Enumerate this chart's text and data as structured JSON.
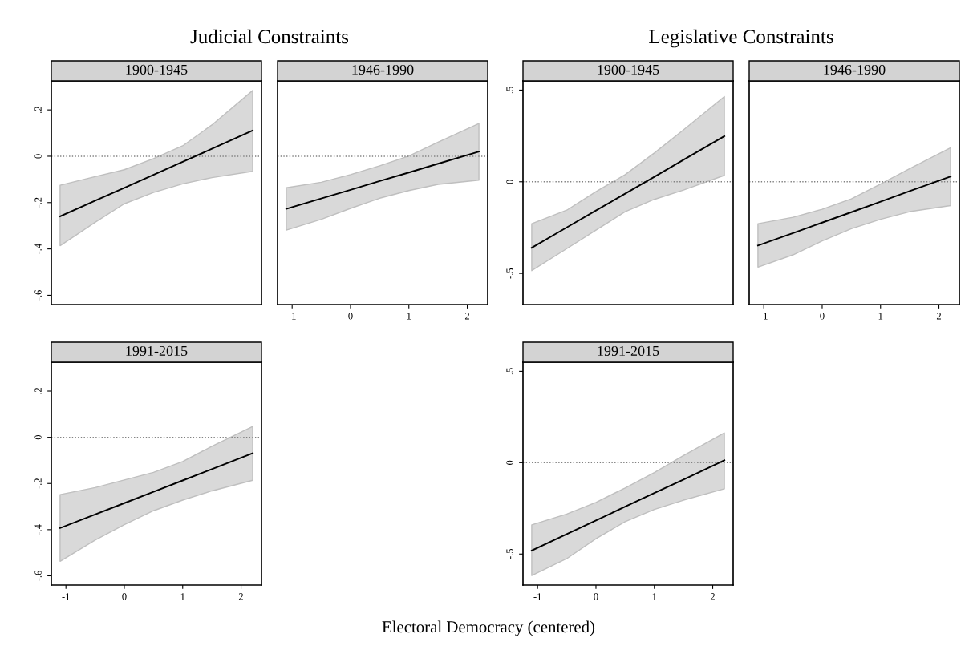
{
  "chart_data": [
    {
      "type": "line",
      "title": "1900-1945",
      "annotations": [
        "Judicial Constraints"
      ],
      "x": [
        -1.1,
        -0.5,
        0,
        0.5,
        1,
        1.5,
        2.2
      ],
      "series": [
        {
          "color": "#000000",
          "values": [
            -0.259,
            -0.192,
            -0.136,
            -0.08,
            -0.024,
            0.032,
            0.111
          ],
          "lower": [
            -0.386,
            -0.285,
            -0.205,
            -0.156,
            -0.119,
            -0.092,
            -0.065
          ],
          "upper": [
            -0.125,
            -0.088,
            -0.058,
            -0.01,
            0.045,
            0.135,
            0.284
          ]
        }
      ],
      "xlim": [
        -1.25,
        2.35
      ],
      "ylim": [
        -0.64,
        0.325
      ],
      "yticks": [
        {
          "value": -0.6,
          "label": "-.6"
        },
        {
          "value": -0.4,
          "label": "-.4"
        },
        {
          "value": -0.2,
          "label": "-.2"
        },
        0,
        {
          "value": 0.2,
          "label": ".2"
        }
      ],
      "ref_lines": [
        {
          "axis": "y",
          "value": 0,
          "color": "#808080",
          "line_style": "dotted"
        }
      ],
      "tick_labels": "y",
      "grid": false,
      "legend": false,
      "marker": "none",
      "line_style": "solid"
    },
    {
      "type": "line",
      "title": "1946-1990",
      "x": [
        -1.1,
        -0.5,
        0,
        0.5,
        1,
        1.5,
        2.2
      ],
      "series": [
        {
          "color": "#000000",
          "values": [
            -0.227,
            -0.182,
            -0.145,
            -0.107,
            -0.07,
            -0.032,
            0.02
          ],
          "lower": [
            -0.319,
            -0.272,
            -0.225,
            -0.181,
            -0.148,
            -0.121,
            -0.103
          ],
          "upper": [
            -0.136,
            -0.112,
            -0.079,
            -0.041,
            0.001,
            0.061,
            0.141
          ]
        }
      ],
      "xlim": [
        -1.25,
        2.35
      ],
      "ylim": [
        -0.64,
        0.325
      ],
      "xticks": [
        -1,
        0,
        1,
        2
      ],
      "ref_lines": [
        {
          "axis": "y",
          "value": 0,
          "color": "#808080",
          "line_style": "dotted"
        }
      ],
      "tick_labels": "x",
      "grid": false,
      "legend": false,
      "marker": "none",
      "line_style": "solid"
    },
    {
      "type": "line",
      "title": "1900-1945",
      "annotations": [
        "Legislative Constraints"
      ],
      "x": [
        -1.1,
        -0.5,
        0,
        0.5,
        1,
        1.5,
        2.2
      ],
      "series": [
        {
          "color": "#000000",
          "values": [
            -0.36,
            -0.249,
            -0.157,
            -0.065,
            0.027,
            0.12,
            0.249
          ],
          "lower": [
            -0.485,
            -0.365,
            -0.264,
            -0.163,
            -0.096,
            -0.045,
            0.035
          ],
          "upper": [
            -0.229,
            -0.155,
            -0.054,
            0.039,
            0.157,
            0.283,
            0.465
          ]
        }
      ],
      "xlim": [
        -1.25,
        2.35
      ],
      "ylim": [
        -0.67,
        0.55
      ],
      "yticks": [
        {
          "value": -0.5,
          "label": "-.5"
        },
        0,
        {
          "value": 0.5,
          "label": ".5"
        }
      ],
      "ref_lines": [
        {
          "axis": "y",
          "value": 0,
          "color": "#808080",
          "line_style": "dotted"
        }
      ],
      "tick_labels": "y",
      "grid": false,
      "legend": false,
      "marker": "none",
      "line_style": "solid"
    },
    {
      "type": "line",
      "title": "1946-1990",
      "x": [
        -1.1,
        -0.5,
        0,
        0.5,
        1,
        1.5,
        2.2
      ],
      "series": [
        {
          "color": "#000000",
          "values": [
            -0.348,
            -0.28,
            -0.223,
            -0.166,
            -0.109,
            -0.051,
            0.029
          ],
          "lower": [
            -0.466,
            -0.399,
            -0.323,
            -0.256,
            -0.205,
            -0.163,
            -0.13
          ],
          "upper": [
            -0.229,
            -0.194,
            -0.15,
            -0.093,
            -0.012,
            0.072,
            0.185
          ]
        }
      ],
      "xlim": [
        -1.25,
        2.35
      ],
      "ylim": [
        -0.67,
        0.55
      ],
      "xticks": [
        -1,
        0,
        1,
        2
      ],
      "ref_lines": [
        {
          "axis": "y",
          "value": 0,
          "color": "#808080",
          "line_style": "dotted"
        }
      ],
      "tick_labels": "x",
      "grid": false,
      "legend": false,
      "marker": "none",
      "line_style": "solid"
    },
    {
      "type": "line",
      "title": "1991-2015",
      "x": [
        -1.1,
        -0.5,
        0,
        0.5,
        1,
        1.5,
        2.2
      ],
      "series": [
        {
          "color": "#000000",
          "values": [
            -0.393,
            -0.334,
            -0.285,
            -0.236,
            -0.187,
            -0.138,
            -0.069
          ],
          "lower": [
            -0.537,
            -0.445,
            -0.378,
            -0.318,
            -0.272,
            -0.232,
            -0.186
          ],
          "upper": [
            -0.248,
            -0.218,
            -0.185,
            -0.152,
            -0.105,
            -0.039,
            0.047
          ]
        }
      ],
      "xlim": [
        -1.25,
        2.35
      ],
      "ylim": [
        -0.64,
        0.325
      ],
      "xticks": [
        -1,
        0,
        1,
        2
      ],
      "yticks": [
        {
          "value": -0.6,
          "label": "-.6"
        },
        {
          "value": -0.4,
          "label": "-.4"
        },
        {
          "value": -0.2,
          "label": "-.2"
        },
        0,
        {
          "value": 0.2,
          "label": ".2"
        }
      ],
      "ref_lines": [
        {
          "axis": "y",
          "value": 0,
          "color": "#808080",
          "line_style": "dotted"
        }
      ],
      "grid": false,
      "legend": false,
      "marker": "none",
      "line_style": "solid"
    },
    {
      "type": "line",
      "title": "1991-2015",
      "xlabel": "Electoral Democracy (centered)",
      "x": [
        -1.1,
        -0.5,
        0,
        0.5,
        1,
        1.5,
        2.2
      ],
      "series": [
        {
          "color": "#000000",
          "values": [
            -0.481,
            -0.391,
            -0.316,
            -0.241,
            -0.166,
            -0.092,
            0.013
          ],
          "lower": [
            -0.618,
            -0.525,
            -0.416,
            -0.323,
            -0.256,
            -0.205,
            -0.143
          ],
          "upper": [
            -0.34,
            -0.281,
            -0.217,
            -0.138,
            -0.054,
            0.039,
            0.163
          ]
        }
      ],
      "xlim": [
        -1.25,
        2.35
      ],
      "ylim": [
        -0.67,
        0.55
      ],
      "xticks": [
        -1,
        0,
        1,
        2
      ],
      "yticks": [
        {
          "value": -0.5,
          "label": "-.5"
        },
        0,
        {
          "value": 0.5,
          "label": ".5"
        }
      ],
      "ref_lines": [
        {
          "axis": "y",
          "value": 0,
          "color": "#808080",
          "line_style": "dotted"
        }
      ],
      "grid": false,
      "legend": false,
      "marker": "none",
      "line_style": "solid"
    }
  ]
}
